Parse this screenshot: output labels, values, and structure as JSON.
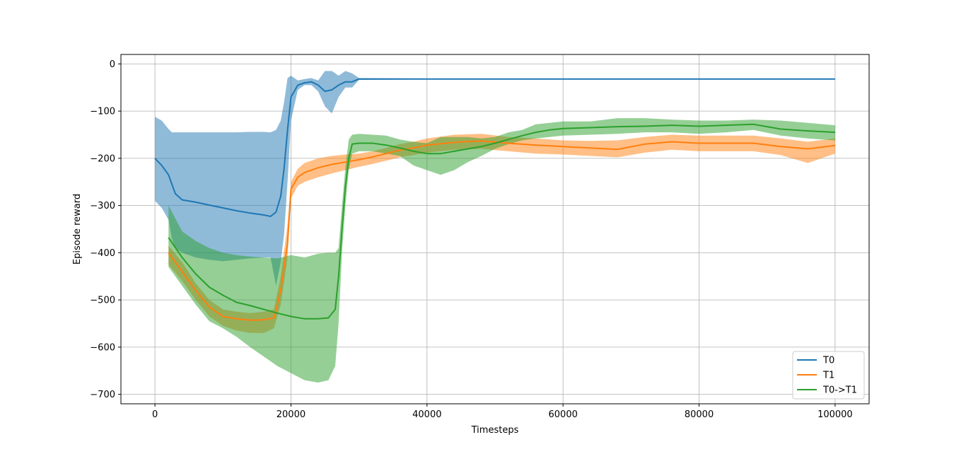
{
  "chart_data": {
    "type": "line",
    "xlabel": "Timesteps",
    "ylabel": "Episode reward",
    "xlim": [
      -5000,
      105000
    ],
    "ylim": [
      -720,
      20
    ],
    "xticks": [
      0,
      20000,
      40000,
      60000,
      80000,
      100000
    ],
    "yticks": [
      0,
      -100,
      -200,
      -300,
      -400,
      -500,
      -600,
      -700
    ],
    "xtick_labels": [
      "0",
      "20000",
      "40000",
      "60000",
      "80000",
      "100000"
    ],
    "ytick_labels": [
      "0",
      "−100",
      "−200",
      "−300",
      "−400",
      "−500",
      "−600",
      "−700"
    ],
    "grid": true,
    "legend_position": "lower-right",
    "series": [
      {
        "name": "T0",
        "color": "#1f77b4",
        "x": [
          0,
          1000,
          2000,
          2500,
          3000,
          4000,
          6000,
          8000,
          10000,
          12000,
          14000,
          16000,
          17000,
          17800,
          18500,
          19000,
          19500,
          20000,
          21000,
          22000,
          23000,
          24000,
          25000,
          26000,
          27000,
          28000,
          29000,
          30000,
          40000,
          60000,
          80000,
          100000
        ],
        "y": [
          -200,
          -215,
          -235,
          -255,
          -275,
          -288,
          -293,
          -299,
          -305,
          -311,
          -316,
          -320,
          -323,
          -314,
          -280,
          -220,
          -140,
          -70,
          -45,
          -40,
          -38,
          -45,
          -58,
          -55,
          -45,
          -38,
          -38,
          -32,
          -32,
          -32,
          -32,
          -32
        ],
        "upper": [
          -112,
          -120,
          -138,
          -145,
          -145,
          -145,
          -145,
          -145,
          -145,
          -145,
          -144,
          -144,
          -145,
          -140,
          -120,
          -80,
          -30,
          -25,
          -35,
          -32,
          -30,
          -35,
          -15,
          -15,
          -25,
          -15,
          -20,
          -30,
          -31,
          -31,
          -31,
          -31
        ],
        "lower": [
          -290,
          -305,
          -330,
          -370,
          -390,
          -400,
          -410,
          -415,
          -418,
          -415,
          -412,
          -410,
          -410,
          -470,
          -420,
          -360,
          -250,
          -120,
          -55,
          -45,
          -45,
          -58,
          -90,
          -105,
          -70,
          -50,
          -50,
          -34,
          -33,
          -33,
          -33,
          -33
        ]
      },
      {
        "name": "T1",
        "color": "#ff7f0e",
        "x": [
          2000,
          4000,
          6000,
          8000,
          10000,
          12000,
          14000,
          16000,
          17500,
          18500,
          19500,
          20000,
          21000,
          22000,
          24000,
          26000,
          28000,
          30000,
          32000,
          34000,
          36000,
          38000,
          40000,
          44000,
          48000,
          52000,
          56000,
          60000,
          64000,
          68000,
          72000,
          76000,
          80000,
          84000,
          88000,
          92000,
          96000,
          100000
        ],
        "y": [
          -400,
          -440,
          -480,
          -515,
          -535,
          -540,
          -543,
          -542,
          -538,
          -480,
          -380,
          -265,
          -240,
          -230,
          -220,
          -213,
          -208,
          -203,
          -197,
          -190,
          -183,
          -178,
          -172,
          -166,
          -163,
          -168,
          -172,
          -175,
          -178,
          -181,
          -170,
          -165,
          -168,
          -168,
          -168,
          -175,
          -180,
          -173
        ],
        "upper": [
          -385,
          -420,
          -465,
          -500,
          -520,
          -525,
          -528,
          -525,
          -520,
          -450,
          -340,
          -250,
          -222,
          -210,
          -200,
          -195,
          -192,
          -190,
          -185,
          -178,
          -170,
          -165,
          -158,
          -150,
          -148,
          -155,
          -158,
          -162,
          -163,
          -162,
          -155,
          -150,
          -152,
          -152,
          -152,
          -158,
          -165,
          -158
        ],
        "lower": [
          -425,
          -460,
          -500,
          -535,
          -555,
          -565,
          -570,
          -570,
          -560,
          -510,
          -410,
          -285,
          -258,
          -250,
          -240,
          -232,
          -225,
          -218,
          -212,
          -205,
          -198,
          -193,
          -188,
          -182,
          -180,
          -185,
          -190,
          -192,
          -195,
          -198,
          -188,
          -182,
          -185,
          -185,
          -185,
          -193,
          -210,
          -190
        ]
      },
      {
        "name": "T0->T1",
        "color": "#2ca02c",
        "x": [
          2000,
          4000,
          6000,
          8000,
          10000,
          12000,
          14000,
          16000,
          18000,
          20000,
          22000,
          24000,
          25500,
          26500,
          27000,
          27500,
          28000,
          28500,
          29000,
          30000,
          32000,
          34000,
          36000,
          38000,
          40000,
          42000,
          44000,
          46000,
          48000,
          50000,
          52000,
          54000,
          56000,
          58000,
          60000,
          64000,
          68000,
          72000,
          76000,
          80000,
          84000,
          88000,
          92000,
          96000,
          100000
        ],
        "y": [
          -368,
          -410,
          -445,
          -473,
          -490,
          -505,
          -512,
          -520,
          -528,
          -535,
          -540,
          -540,
          -538,
          -520,
          -450,
          -350,
          -260,
          -200,
          -170,
          -168,
          -168,
          -172,
          -178,
          -185,
          -190,
          -190,
          -185,
          -180,
          -175,
          -168,
          -160,
          -152,
          -145,
          -140,
          -137,
          -135,
          -133,
          -132,
          -130,
          -132,
          -130,
          -128,
          -138,
          -142,
          -145
        ],
        "upper": [
          -300,
          -355,
          -375,
          -390,
          -400,
          -405,
          -408,
          -410,
          -412,
          -405,
          -410,
          -402,
          -400,
          -400,
          -390,
          -300,
          -220,
          -160,
          -150,
          -148,
          -150,
          -152,
          -160,
          -165,
          -168,
          -155,
          -155,
          -155,
          -158,
          -155,
          -145,
          -140,
          -128,
          -125,
          -122,
          -122,
          -115,
          -115,
          -118,
          -120,
          -120,
          -118,
          -120,
          -125,
          -130
        ],
        "lower": [
          -430,
          -470,
          -510,
          -545,
          -560,
          -578,
          -600,
          -620,
          -640,
          -655,
          -670,
          -675,
          -670,
          -640,
          -550,
          -400,
          -300,
          -225,
          -190,
          -185,
          -185,
          -190,
          -195,
          -215,
          -225,
          -235,
          -225,
          -208,
          -195,
          -180,
          -170,
          -162,
          -158,
          -155,
          -152,
          -150,
          -148,
          -145,
          -145,
          -148,
          -145,
          -140,
          -152,
          -158,
          -162
        ]
      }
    ]
  }
}
